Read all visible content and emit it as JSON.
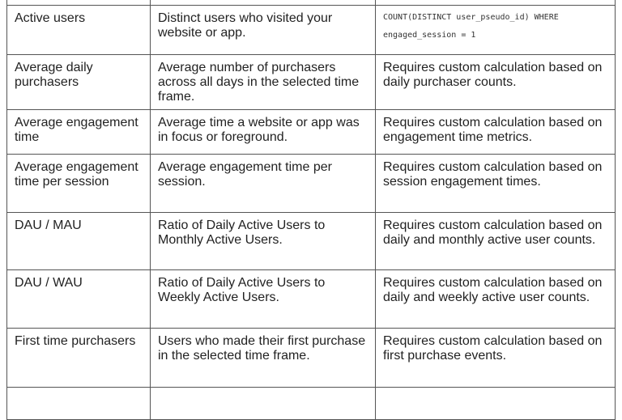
{
  "rows": [
    {
      "metric": "",
      "description": "",
      "calculation": ""
    },
    {
      "metric": "Active users",
      "description": "Distinct users who visited your website or app.",
      "calculation_line1": "COUNT(DISTINCT user_pseudo_id) WHERE",
      "calculation_line2": "engaged_session = 1"
    },
    {
      "metric": "Average daily purchasers",
      "description": "Average number of purchasers across all days in the selected time frame.",
      "calculation": "Requires custom calculation based on daily purchaser counts."
    },
    {
      "metric": "Average engagement time",
      "description": "Average time a website or app was in focus or foreground.",
      "calculation": "Requires custom calculation based on engagement time metrics."
    },
    {
      "metric": "Average engagement time per session",
      "description": "Average engagement time per session.",
      "calculation": "Requires custom calculation based on session engagement times."
    },
    {
      "metric": "DAU / MAU",
      "description": "Ratio of Daily Active Users to Monthly Active Users.",
      "calculation": "Requires custom calculation based on daily and monthly active user counts."
    },
    {
      "metric": "DAU / WAU",
      "description": "Ratio of Daily Active Users to Weekly Active Users.",
      "calculation": "Requires custom calculation based on daily and weekly active user counts."
    },
    {
      "metric": "First time purchasers",
      "description": "Users who made their first purchase in the selected time frame.",
      "calculation": "Requires custom calculation based on first purchase events."
    },
    {
      "metric": "",
      "description": "",
      "calculation": ""
    }
  ]
}
